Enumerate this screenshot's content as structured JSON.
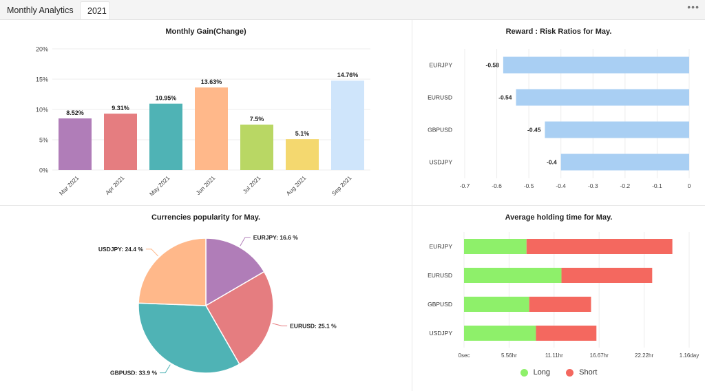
{
  "tabs": {
    "main": "Monthly Analytics",
    "year": "2021"
  },
  "menu": {
    "more": "•••"
  },
  "monthly_gain": {
    "title": "Monthly Gain(Change)",
    "chart_data": {
      "type": "bar",
      "categories": [
        "Mar 2021",
        "Apr 2021",
        "May 2021",
        "Jun 2021",
        "Jul 2021",
        "Aug 2021",
        "Sep 2021"
      ],
      "values": [
        8.52,
        9.31,
        10.95,
        13.63,
        7.5,
        5.1,
        14.76
      ],
      "labels": [
        "8.52%",
        "9.31%",
        "10.95%",
        "13.63%",
        "7.5%",
        "5.1%",
        "14.76%"
      ],
      "colors": [
        "#b07db8",
        "#e57d80",
        "#4fb3b5",
        "#ffb88a",
        "#b9d764",
        "#f4d86f",
        "#cfe5fb"
      ],
      "yticks": [
        "0%",
        "5%",
        "10%",
        "15%",
        "20%"
      ],
      "ylim": [
        0,
        20
      ]
    }
  },
  "risk": {
    "title": "Reward : Risk Ratios for May.",
    "chart_data": {
      "type": "bar",
      "orientation": "horizontal",
      "categories": [
        "EURJPY",
        "EURUSD",
        "GBPUSD",
        "USDJPY"
      ],
      "values": [
        -0.58,
        -0.54,
        -0.45,
        -0.4
      ],
      "labels": [
        "-0.58",
        "-0.54",
        "-0.45",
        "-0.4"
      ],
      "color": "#a9cff3",
      "xticks": [
        "-0.7",
        "-0.6",
        "-0.5",
        "-0.4",
        "-0.3",
        "-0.2",
        "-0.1",
        "0"
      ],
      "xlim": [
        -0.7,
        0
      ]
    }
  },
  "popularity": {
    "title": "Currencies popularity for May.",
    "chart_data": {
      "type": "pie",
      "slices": [
        {
          "label": "EURJPY: 16.6 %",
          "value": 16.6,
          "color": "#b07db8"
        },
        {
          "label": "EURUSD: 25.1 %",
          "value": 25.1,
          "color": "#e57d80"
        },
        {
          "label": "GBPUSD: 33.9 %",
          "value": 33.9,
          "color": "#4fb3b5"
        },
        {
          "label": "USDJPY: 24.4 %",
          "value": 24.4,
          "color": "#ffb88a"
        }
      ]
    }
  },
  "holding": {
    "title": "Average holding time for May.",
    "chart_data": {
      "type": "bar",
      "orientation": "horizontal",
      "stacked": true,
      "categories": [
        "EURJPY",
        "EURUSD",
        "GBPUSD",
        "USDJPY"
      ],
      "series": [
        {
          "name": "Long",
          "values": [
            0.93,
            1.45,
            0.97,
            1.07
          ],
          "color": "#8ef06a"
        },
        {
          "name": "Short",
          "values": [
            2.17,
            1.35,
            0.92,
            0.9
          ],
          "color": "#f4685f"
        }
      ],
      "xticks": [
        "0sec",
        "5.56hr",
        "11.11hr",
        "16.67hr",
        "22.22hr",
        "1.16day"
      ],
      "xunit": "ticks",
      "xlim": [
        0,
        3.35
      ]
    },
    "legend": {
      "long": "Long",
      "short": "Short"
    }
  }
}
